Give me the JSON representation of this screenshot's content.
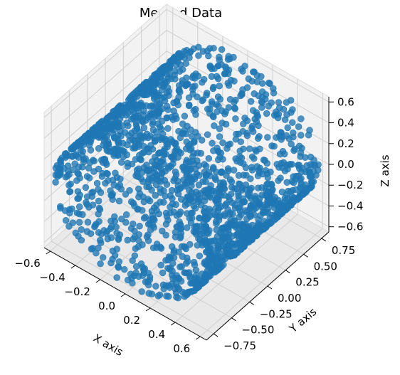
{
  "chart_data": {
    "type": "scatter",
    "projection": "3d",
    "title": "Merged Data",
    "xlabel": "X axis",
    "ylabel": "Y axis",
    "zlabel": "Z axis",
    "xlim": [
      -0.65,
      0.65
    ],
    "ylim": [
      -0.85,
      0.85
    ],
    "zlim": [
      -0.65,
      0.65
    ],
    "xticks": [
      "−0.6",
      "−0.4",
      "−0.2",
      "0.0",
      "0.2",
      "0.4",
      "0.6"
    ],
    "yticks": [
      "−0.75",
      "−0.50",
      "−0.25",
      "0.00",
      "0.25",
      "0.50",
      "0.75"
    ],
    "zticks": [
      "−0.6",
      "−0.4",
      "−0.2",
      "0.0",
      "0.2",
      "0.4",
      "0.6"
    ],
    "marker_color": "#1f77b4",
    "shape": "points on the surface of a cylinder (radius 0.6 in X–Z, length along Y from -0.8 to 0.8)",
    "grid": true
  }
}
